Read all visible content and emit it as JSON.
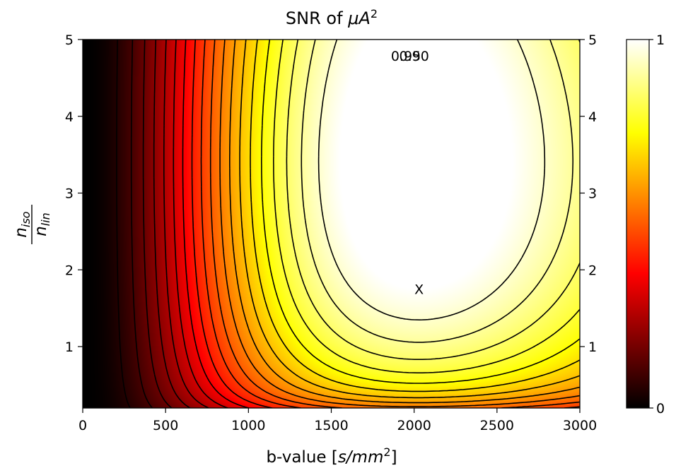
{
  "chart_data": {
    "type": "heatmap",
    "title_text": "SNR of ",
    "title_math": "μA",
    "title_sup": "2",
    "xlabel_text": "b-value [",
    "xlabel_math": "s/mm",
    "xlabel_sup": "2",
    "xlabel_close": "]",
    "ylabel_num": "n",
    "ylabel_num_sub": "iso",
    "ylabel_den": "n",
    "ylabel_den_sub": "lin",
    "xlim": [
      0,
      3000
    ],
    "ylim": [
      0.2,
      5
    ],
    "x_ticks": [
      0,
      500,
      1000,
      1500,
      2000,
      2500,
      3000
    ],
    "x_tick_labels": [
      "0",
      "500",
      "1000",
      "1500",
      "2000",
      "2500",
      "3000"
    ],
    "y_ticks": [
      1,
      2,
      3,
      4,
      5
    ],
    "y_tick_labels": [
      "1",
      "2",
      "3",
      "4",
      "5"
    ],
    "right_y_tick_labels": [
      "1",
      "2",
      "3",
      "4",
      "5"
    ],
    "colormap": "hot",
    "colorbar": {
      "min": 0,
      "max": 1,
      "tick_labels": [
        "0",
        "1"
      ]
    },
    "optimum_marker": {
      "label": "X",
      "b": 2030,
      "ratio": 1.75
    },
    "contour_levels_labeled": [
      {
        "level": 0.9,
        "label": "0.90"
      },
      {
        "level": 0.95,
        "label": "0.95"
      }
    ],
    "contour_level_step": 0.05,
    "grid": false,
    "legend": "none"
  }
}
